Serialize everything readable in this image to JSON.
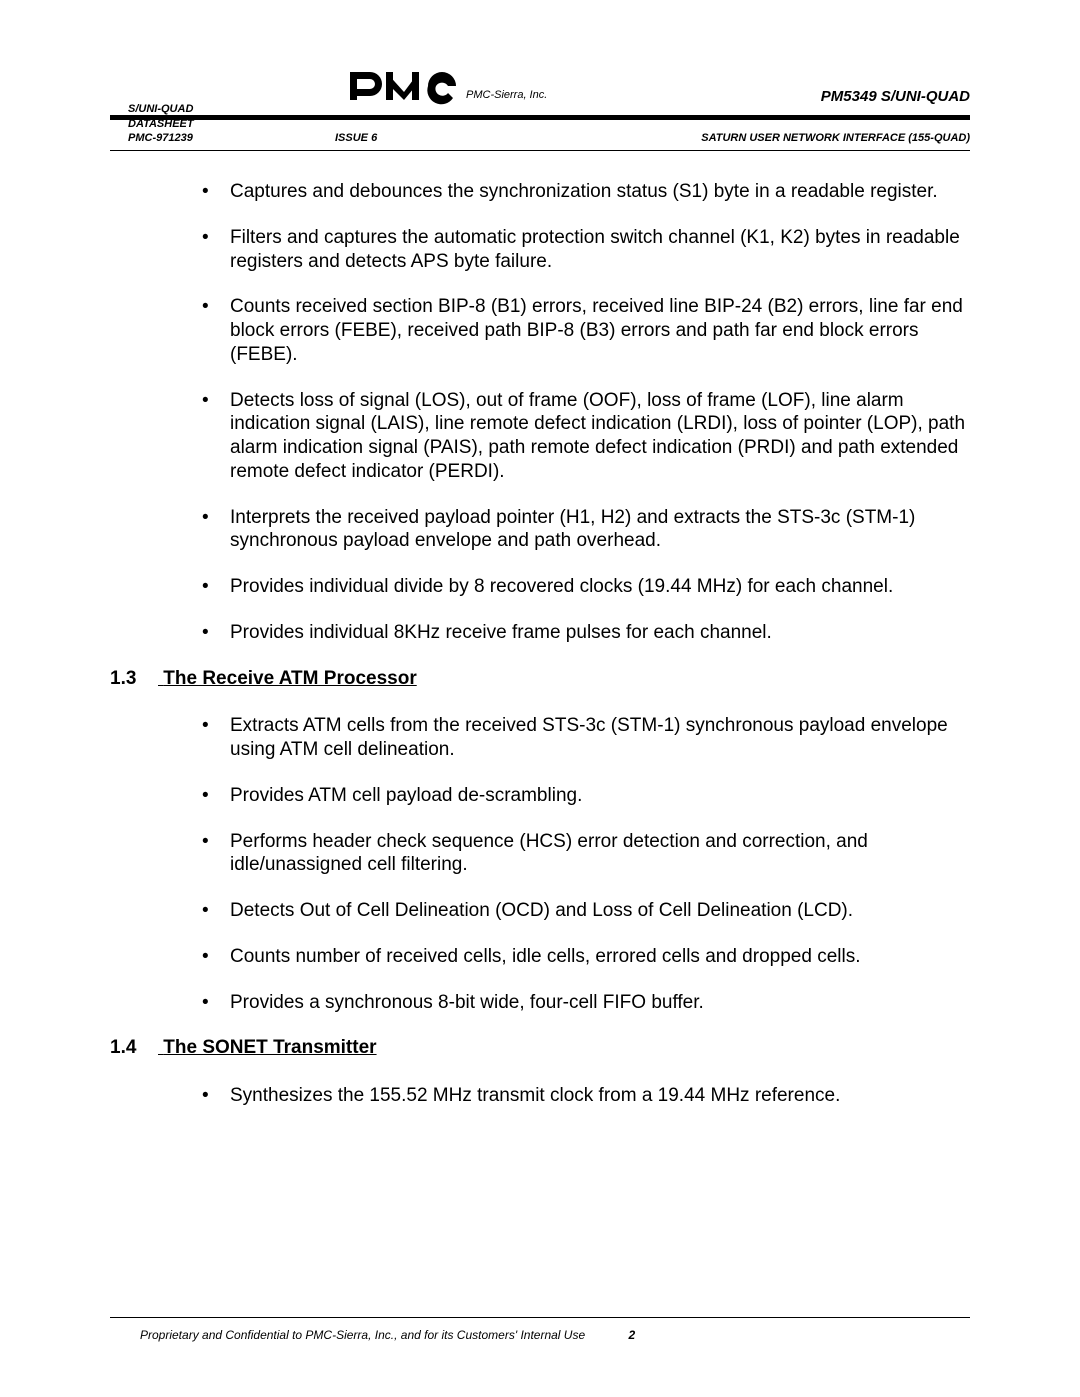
{
  "header": {
    "company": "PMC-Sierra, Inc.",
    "product_right": "PM5349 S/UNI-QUAD",
    "left_meta_line1": "S/UNI-QUAD",
    "left_meta_line2": "DATASHEET",
    "row2_left": "PMC-971239",
    "row2_center": "ISSUE 6",
    "row2_right": "SATURN USER NETWORK INTERFACE (155-QUAD)"
  },
  "section12_bullets": [
    "Captures and debounces the synchronization status (S1) byte in a readable register.",
    "Filters and captures the automatic protection switch channel (K1, K2) bytes in readable registers and detects APS byte failure.",
    "Counts received section BIP-8 (B1) errors, received line BIP-24 (B2) errors, line far end block errors (FEBE), received path BIP-8 (B3) errors and path far end block errors (FEBE).",
    "Detects loss of signal (LOS), out of frame (OOF), loss of frame (LOF), line alarm indication signal (LAIS), line remote defect indication (LRDI), loss of pointer (LOP), path alarm indication signal (PAIS), path remote defect indication (PRDI) and path extended remote defect indicator (PERDI).",
    "Interprets the received payload pointer (H1, H2) and extracts the STS-3c (STM-1) synchronous payload envelope and path overhead.",
    "Provides individual divide by 8 recovered clocks (19.44 MHz) for each channel.",
    "Provides individual 8KHz receive frame pulses for each channel."
  ],
  "section13": {
    "num": "1.3",
    "title": "The Receive ATM Processor"
  },
  "section13_bullets": [
    "Extracts ATM cells from the received STS-3c (STM-1) synchronous payload envelope using ATM cell delineation.",
    "Provides ATM cell payload de-scrambling.",
    "Performs header check sequence (HCS) error detection and correction, and idle/unassigned cell filtering.",
    "Detects Out of Cell Delineation (OCD) and Loss of Cell Delineation (LCD).",
    "Counts number of received cells, idle cells, errored cells and dropped cells.",
    "Provides a synchronous 8-bit wide, four-cell FIFO buffer."
  ],
  "section14": {
    "num": "1.4",
    "title": "The SONET Transmitter"
  },
  "section14_bullets": [
    "Synthesizes the 155.52 MHz transmit clock from a 19.44 MHz reference."
  ],
  "footer": {
    "text": "Proprietary and Confidential to PMC-Sierra, Inc., and for its Customers' Internal Use",
    "page": "2"
  },
  "colors": {
    "text": "#000000",
    "background": "#ffffff"
  }
}
